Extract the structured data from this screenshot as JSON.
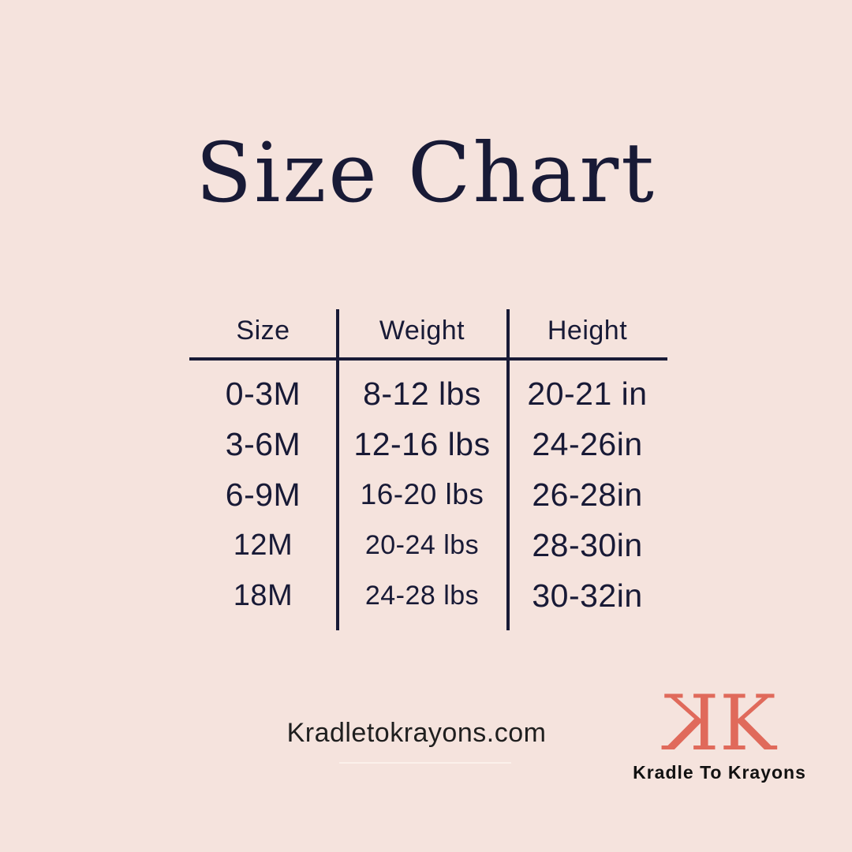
{
  "title": "Size Chart",
  "chart_data": {
    "type": "table",
    "title": "Size Chart",
    "columns": [
      "Size",
      "Weight",
      "Height"
    ],
    "rows": [
      [
        "0-3M",
        "8-12 lbs",
        "20-21 in"
      ],
      [
        "3-6M",
        "12-16 lbs",
        "24-26in"
      ],
      [
        "6-9M",
        "16-20 lbs",
        "26-28in"
      ],
      [
        "12M",
        "20-24 lbs",
        "28-30in"
      ],
      [
        "18M",
        "24-28 lbs",
        "30-32in"
      ]
    ]
  },
  "footer": {
    "website": "Kradletokrayons.com"
  },
  "brand": {
    "logo_left_k": "K",
    "logo_right_k": "K",
    "name": "Kradle To Krayons"
  },
  "colors": {
    "background": "#f5e3dd",
    "text_navy": "#181a36",
    "accent_coral": "#e06a5b",
    "footer_text": "#1f1f1f"
  }
}
